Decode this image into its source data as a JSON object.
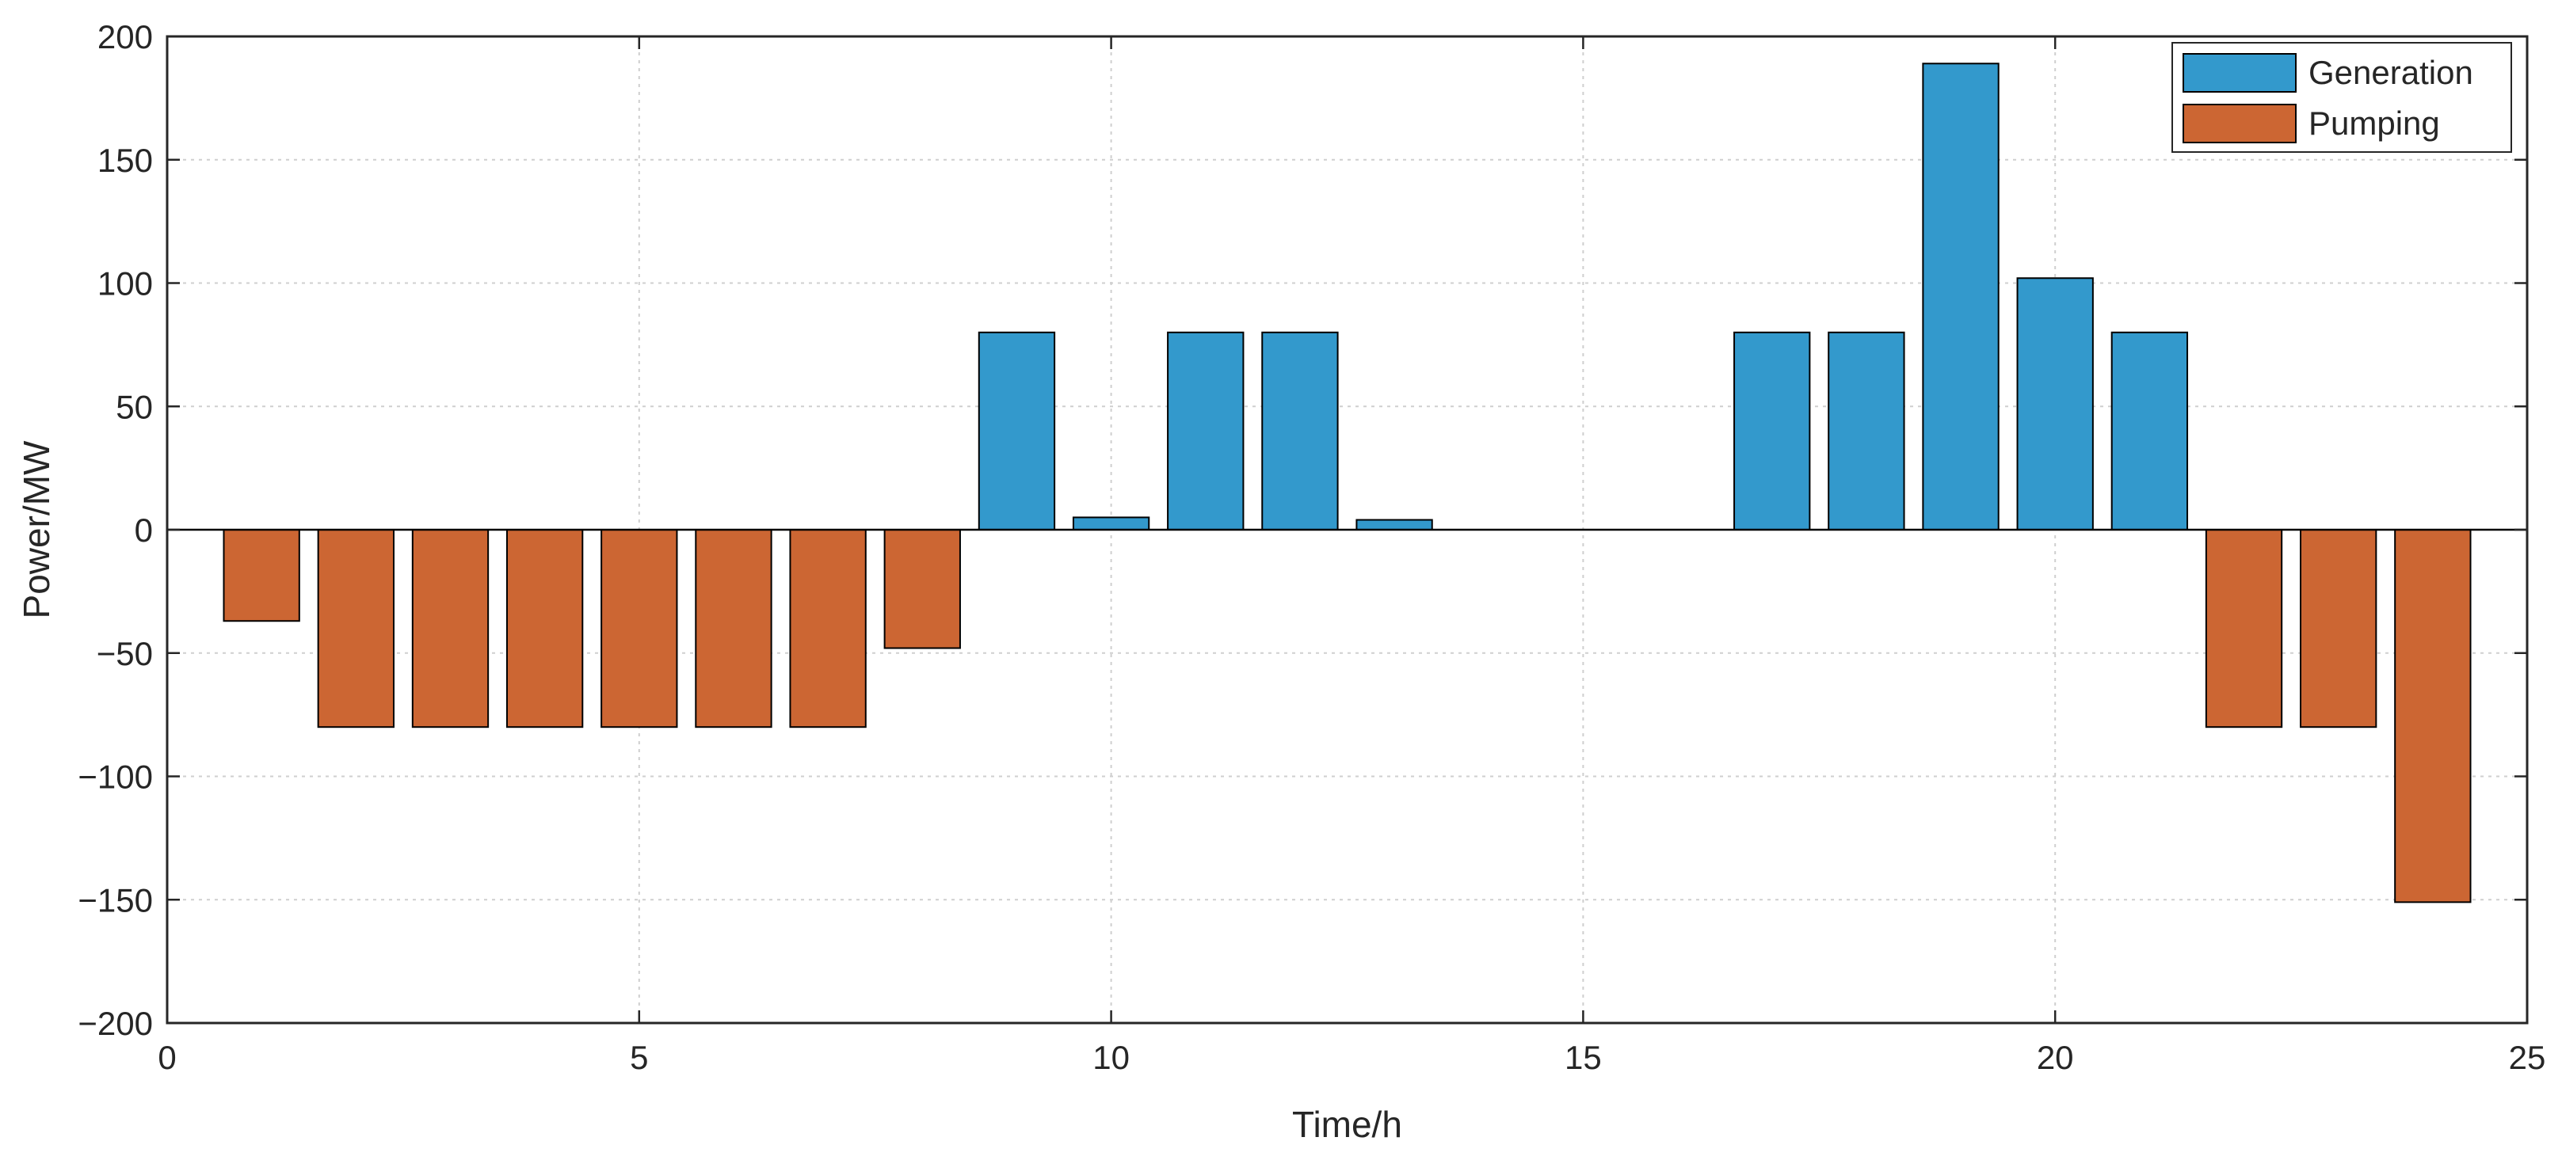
{
  "chart_data": {
    "type": "bar",
    "xlabel": "Time/h",
    "ylabel": "Power/MW",
    "xlim": [
      0,
      25
    ],
    "ylim": [
      -200,
      200
    ],
    "xticks": [
      0,
      5,
      10,
      15,
      20,
      25
    ],
    "yticks": [
      -200,
      -150,
      -100,
      -50,
      0,
      50,
      100,
      150,
      200
    ],
    "grid": true,
    "legend_position": "top-right",
    "series": [
      {
        "name": "Generation",
        "color": "#3399cc",
        "x": [
          9,
          10,
          11,
          12,
          13,
          17,
          18,
          19,
          20,
          21
        ],
        "values": [
          80,
          5,
          80,
          80,
          4,
          80,
          80,
          189,
          102,
          80
        ]
      },
      {
        "name": "Pumping",
        "color": "#cc6633",
        "x": [
          1,
          2,
          3,
          4,
          5,
          6,
          7,
          8,
          22,
          23,
          24
        ],
        "values": [
          -37,
          -80,
          -80,
          -80,
          -80,
          -80,
          -80,
          -48,
          -80,
          -80,
          -151
        ]
      }
    ]
  }
}
